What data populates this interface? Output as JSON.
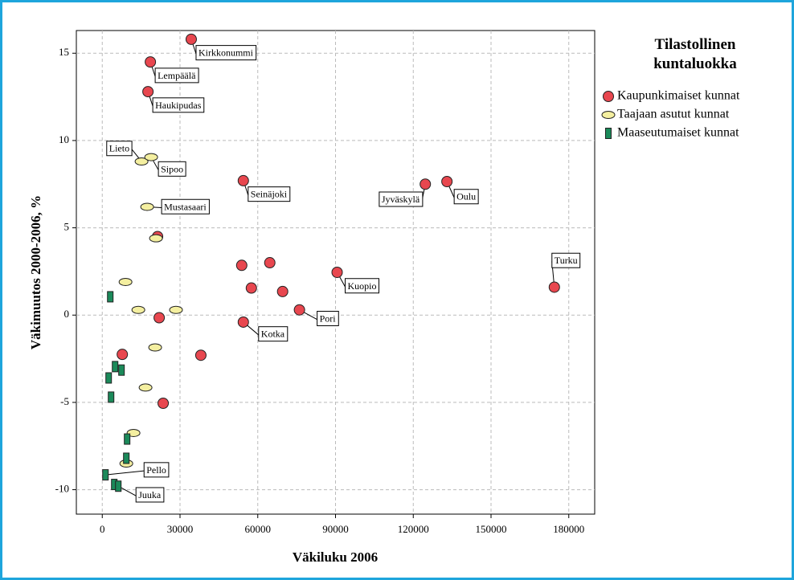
{
  "chart_data": {
    "type": "scatter",
    "xlabel": "Väkiluku 2006",
    "ylabel": "Väkimuutos 2000-2006, %",
    "legend_title": "Tilastollinen kuntaluokka",
    "xlim": [
      -10000,
      190000
    ],
    "ylim": [
      -11.4,
      16.3
    ],
    "xticks": [
      0,
      30000,
      60000,
      90000,
      120000,
      150000,
      180000
    ],
    "yticks": [
      -10,
      -5,
      0,
      5,
      10,
      15
    ],
    "grid": true,
    "legend": "right",
    "series": [
      {
        "name": "Kaupunkimaiset kunnat",
        "color": "#e8474f",
        "marker": "circle",
        "x": [
          34330,
          18560,
          17630,
          54430,
          124640,
          132990,
          21340,
          53810,
          64640,
          90620,
          57530,
          69590,
          76080,
          174430,
          21960,
          54430,
          7730,
          38040,
          23500
        ],
        "values": [
          15.8,
          14.5,
          12.8,
          7.7,
          7.5,
          7.65,
          4.5,
          2.85,
          3.0,
          2.45,
          1.55,
          1.35,
          0.3,
          1.6,
          -0.15,
          -0.4,
          -2.25,
          -2.3,
          -5.05
        ],
        "labels": [
          "Kirkkonummi",
          "Lempäälä",
          "Haukipudas",
          "Seinäjoki",
          "Jyväskylä",
          "Oulu",
          null,
          null,
          null,
          "Kuopio",
          null,
          null,
          "Pori",
          "Turku",
          null,
          "Kotka",
          null,
          null,
          null
        ]
      },
      {
        "name": "Taajaan asutut kunnat",
        "color": "#f4efa0",
        "marker": "ellipse",
        "x": [
          15150,
          18870,
          17320,
          20720,
          8970,
          13920,
          28450,
          20410,
          16700,
          12060,
          9280
        ],
        "values": [
          8.8,
          9.05,
          6.2,
          4.4,
          1.9,
          0.3,
          0.3,
          -1.85,
          -4.15,
          -6.75,
          -8.5
        ],
        "labels": [
          "Lieto",
          "Sipoo",
          "Mustasaari",
          null,
          null,
          null,
          null,
          null,
          null,
          null,
          null
        ]
      },
      {
        "name": "Maaseutumaiset kunnat",
        "color": "#1b8a5a",
        "marker": "rect",
        "x": [
          3090,
          4950,
          7420,
          2470,
          3400,
          9590,
          9280,
          1240,
          4640,
          6190
        ],
        "values": [
          1.05,
          -2.95,
          -3.15,
          -3.6,
          -4.7,
          -7.1,
          -8.2,
          -9.15,
          -9.7,
          -9.8
        ],
        "labels": [
          null,
          null,
          null,
          null,
          null,
          null,
          null,
          "Pello",
          null,
          "Juuka"
        ]
      }
    ]
  }
}
